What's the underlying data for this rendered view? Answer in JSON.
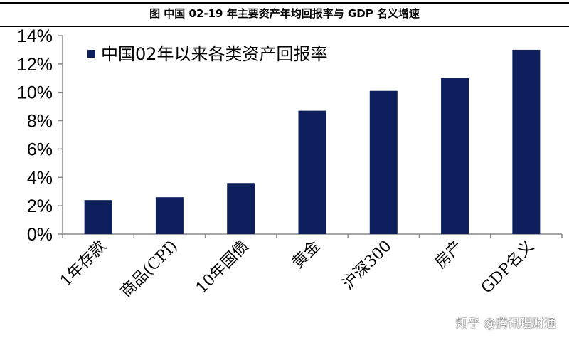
{
  "header": {
    "title": "图  中国 02-19 年主要资产年均回报率与 GDP 名义增速"
  },
  "watermark": "知乎 @腾讯理财通",
  "chart_data": {
    "type": "bar",
    "title": "",
    "categories": [
      "1年存款",
      "商品(CPI)",
      "10年国债",
      "黄金",
      "沪深300",
      "房产",
      "GDP名义"
    ],
    "series": [
      {
        "name": "中国02年以来各类资产回报率",
        "values": [
          2.4,
          2.6,
          3.6,
          8.7,
          10.1,
          11.0,
          13.0
        ],
        "color": "#0d1f5c"
      }
    ],
    "ylim": [
      0,
      14
    ],
    "yticks": [
      "0%",
      "2%",
      "4%",
      "6%",
      "8%",
      "10%",
      "12%",
      "14%"
    ],
    "ytick_values": [
      0,
      2,
      4,
      6,
      8,
      10,
      12,
      14
    ],
    "legend": "top-left",
    "grid": false,
    "xlabel": "",
    "ylabel": ""
  }
}
